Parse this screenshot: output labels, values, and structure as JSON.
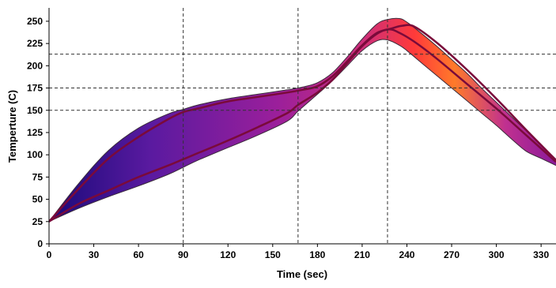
{
  "chart_data": {
    "type": "area",
    "title": "",
    "xlabel": "Time (sec)",
    "ylabel": "Temperture (C)",
    "xlim": [
      0,
      340
    ],
    "ylim": [
      0,
      265
    ],
    "x_ticks": [
      0,
      30,
      60,
      90,
      120,
      150,
      180,
      210,
      240,
      270,
      300,
      330
    ],
    "y_ticks": [
      0,
      25,
      50,
      75,
      100,
      125,
      150,
      175,
      200,
      225,
      250
    ],
    "grid": "custom dashed reference lines",
    "reference_lines": {
      "vertical_x": [
        90,
        167,
        227
      ],
      "horizontal_y": [
        150,
        175,
        213
      ]
    },
    "band": {
      "upper": {
        "x": [
          0,
          20,
          40,
          60,
          80,
          90,
          100,
          120,
          140,
          160,
          170,
          180,
          190,
          200,
          210,
          220,
          227,
          235,
          240,
          250,
          260,
          270,
          280,
          290,
          300,
          310,
          320,
          330,
          340
        ],
        "y": [
          25,
          68,
          105,
          130,
          146,
          151,
          156,
          163,
          168,
          173,
          176,
          181,
          192,
          210,
          230,
          247,
          252,
          253,
          249,
          236,
          222,
          207,
          192,
          175,
          159,
          143,
          127,
          111,
          95
        ]
      },
      "lower": {
        "x": [
          0,
          20,
          40,
          60,
          80,
          90,
          100,
          120,
          140,
          160,
          167,
          180,
          190,
          200,
          210,
          220,
          227,
          235,
          240,
          250,
          260,
          270,
          280,
          290,
          300,
          310,
          320,
          330,
          340
        ],
        "y": [
          25,
          40,
          53,
          65,
          78,
          86,
          94,
          108,
          122,
          138,
          149,
          168,
          183,
          200,
          217,
          228,
          229,
          223,
          217,
          203,
          189,
          175,
          161,
          147,
          133,
          118,
          104,
          96,
          88
        ]
      }
    },
    "series": [
      {
        "x": [
          0,
          20,
          40,
          60,
          80,
          90,
          100,
          120,
          140,
          160,
          170,
          180,
          190,
          200,
          210,
          220,
          230,
          237,
          245,
          260,
          280,
          300,
          320,
          340
        ],
        "y": [
          25,
          62,
          96,
          120,
          140,
          148,
          152,
          160,
          165,
          170,
          173,
          177,
          188,
          205,
          223,
          237,
          242,
          245,
          244,
          226,
          196,
          163,
          128,
          94
        ]
      },
      {
        "x": [
          0,
          20,
          40,
          60,
          80,
          90,
          100,
          120,
          140,
          160,
          167,
          180,
          190,
          200,
          210,
          220,
          228,
          235,
          245,
          260,
          280,
          300,
          320,
          340
        ],
        "y": [
          25,
          45,
          60,
          75,
          88,
          95,
          102,
          116,
          131,
          147,
          156,
          170,
          184,
          203,
          222,
          236,
          241,
          237,
          227,
          208,
          180,
          152,
          122,
          92
        ]
      }
    ],
    "gradient_colors": [
      "#1a0a7a",
      "#5a1aa0",
      "#9b1f9b",
      "#cc2e7a",
      "#ff3a3a",
      "#ff7a2a"
    ],
    "band_outline_color": "#3a2a3a",
    "series_color": "#7a0a3a",
    "ref_line_color": "#333333"
  }
}
